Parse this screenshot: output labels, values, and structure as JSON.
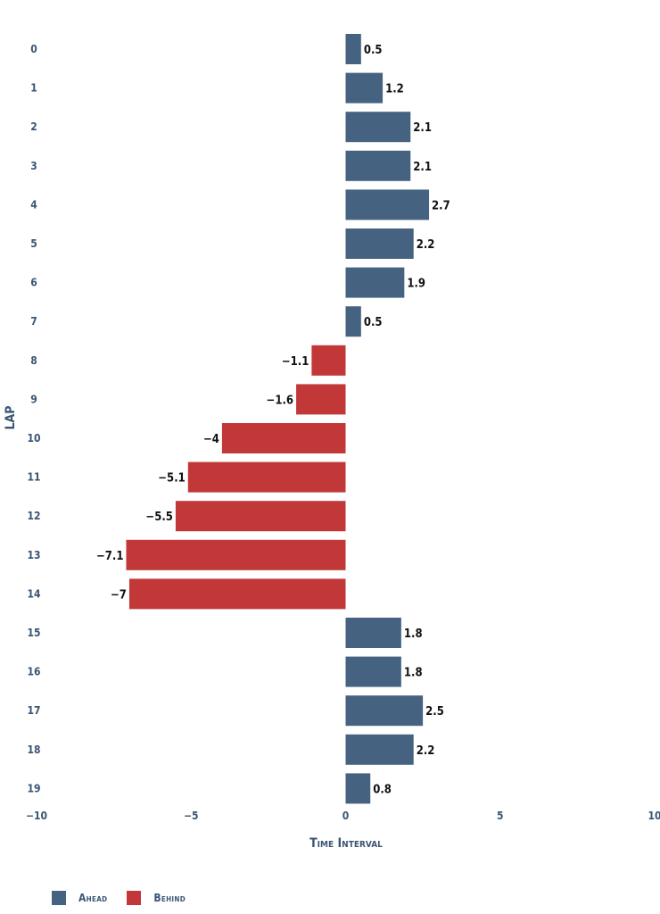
{
  "chart_data": {
    "type": "bar",
    "orientation": "horizontal",
    "xlabel": "Time Interval",
    "ylabel": "LAP",
    "xlim": [
      -10,
      10
    ],
    "xticks": [
      "−10",
      "−5",
      "0",
      "5",
      "10"
    ],
    "xtick_values": [
      -10,
      -5,
      0,
      5,
      10
    ],
    "grid": false,
    "legend_position": "bottom-left",
    "categories": [
      "0",
      "1",
      "2",
      "3",
      "4",
      "5",
      "6",
      "7",
      "8",
      "9",
      "10",
      "11",
      "12",
      "13",
      "14",
      "15",
      "16",
      "17",
      "18",
      "19"
    ],
    "values": [
      0.5,
      1.2,
      2.1,
      2.1,
      2.7,
      2.2,
      1.9,
      0.5,
      -1.1,
      -1.6,
      -4,
      -5.1,
      -5.5,
      -7.1,
      -7,
      1.8,
      1.8,
      2.5,
      2.2,
      0.8
    ],
    "value_labels": [
      "0.5",
      "1.2",
      "2.1",
      "2.1",
      "2.7",
      "2.2",
      "1.9",
      "0.5",
      "−1.1",
      "−1.6",
      "−4",
      "−5.1",
      "−5.5",
      "−7.1",
      "−7",
      "1.8",
      "1.8",
      "2.5",
      "2.2",
      "0.8"
    ],
    "series": [
      {
        "name": "Ahead",
        "color": "#456380"
      },
      {
        "name": "Behind",
        "color": "#c23838"
      }
    ]
  }
}
